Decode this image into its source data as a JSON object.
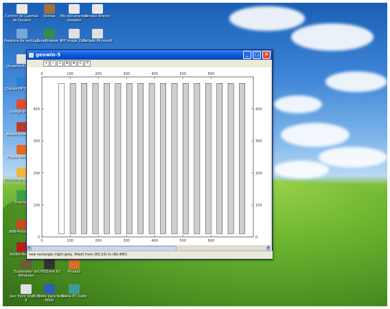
{
  "desktop": {
    "icons": [
      {
        "label": "Control de Cuentas de Usuario",
        "color": "#e9e9e9"
      },
      {
        "label": "Ventas",
        "color": "#a2723d"
      },
      {
        "label": "Mis documentos visuales",
        "color": "#e9e9e9"
      },
      {
        "label": "Acceso directo",
        "color": "#e9e9e9"
      },
      {
        "label": "Papelera de reciclaje",
        "color": "#78a7d8"
      },
      {
        "label": "ZoneBrowser 6",
        "color": "#3a8a45"
      },
      {
        "label": "HP Image Zone",
        "color": "#e0e0e0"
      },
      {
        "label": "Teclado Microsoft",
        "color": "#e0e0e0"
      },
      {
        "label": "Usuarios Externos",
        "color": "#e0e0e0"
      },
      {
        "label": "Cliente HP Officejet",
        "color": "#2f7fd1"
      },
      {
        "label": "Google Picasa",
        "color": "#e34b2b"
      },
      {
        "label": "Adobe Reader 7.0",
        "color": "#c0392b"
      },
      {
        "label": "Picasa Webalbum",
        "color": "#e56b1c"
      },
      {
        "label": "Photoshop Office OS",
        "color": "#f0b73c"
      },
      {
        "label": "Scigraph",
        "color": "#3aa04a"
      },
      {
        "label": "WIN-Prolog 4.6",
        "color": "#c64a1c"
      },
      {
        "label": "Adobe Reader",
        "color": "#b81f1f"
      },
      {
        "label": "Explorador do Windows",
        "color": "#6b5d36"
      },
      {
        "label": "DVDZone X2",
        "color": "#333333"
      },
      {
        "label": "Picasa2",
        "color": "#d86f2b"
      },
      {
        "label": "Jasc Paint Shop Pro 9",
        "color": "#e0e0e0"
      },
      {
        "label": "PC Suite para Nokia 6600",
        "color": "#2a5fb4"
      },
      {
        "label": "Nokia PC Suite",
        "color": "#3f9a9a"
      }
    ]
  },
  "window": {
    "title": "geowin-5",
    "buttons": {
      "minimize": "_",
      "maximize": "□",
      "close": "×"
    },
    "toolbar": [
      "+",
      "−",
      "↕",
      "⊞",
      "⊕",
      "C",
      "P"
    ],
    "status": "new rectangle (light-grey, filled) from (60,10) to (80,480)"
  },
  "chart_data": {
    "type": "bar",
    "title": "",
    "xlabel": "",
    "ylabel": "",
    "xlim": [
      0,
      750
    ],
    "ylim": [
      0,
      500
    ],
    "xticks": [
      0,
      100,
      200,
      300,
      400,
      500,
      600
    ],
    "yticks": [
      0,
      100,
      200,
      300,
      400
    ],
    "fill_color": "#cfcfcf",
    "rects": [
      {
        "x0": 60,
        "x1": 80,
        "y0": 10,
        "y1": 480
      },
      {
        "x0": 100,
        "x1": 120,
        "y0": 10,
        "y1": 480
      },
      {
        "x0": 140,
        "x1": 160,
        "y0": 10,
        "y1": 480
      },
      {
        "x0": 180,
        "x1": 200,
        "y0": 10,
        "y1": 480
      },
      {
        "x0": 220,
        "x1": 240,
        "y0": 10,
        "y1": 480
      },
      {
        "x0": 260,
        "x1": 280,
        "y0": 10,
        "y1": 480
      },
      {
        "x0": 300,
        "x1": 320,
        "y0": 10,
        "y1": 480
      },
      {
        "x0": 340,
        "x1": 360,
        "y0": 10,
        "y1": 480
      },
      {
        "x0": 380,
        "x1": 400,
        "y0": 10,
        "y1": 480
      },
      {
        "x0": 420,
        "x1": 440,
        "y0": 10,
        "y1": 480
      },
      {
        "x0": 460,
        "x1": 480,
        "y0": 10,
        "y1": 480
      },
      {
        "x0": 500,
        "x1": 520,
        "y0": 10,
        "y1": 480
      },
      {
        "x0": 540,
        "x1": 560,
        "y0": 10,
        "y1": 480
      },
      {
        "x0": 580,
        "x1": 600,
        "y0": 10,
        "y1": 480
      },
      {
        "x0": 620,
        "x1": 640,
        "y0": 10,
        "y1": 480
      },
      {
        "x0": 660,
        "x1": 680,
        "y0": 10,
        "y1": 480
      },
      {
        "x0": 700,
        "x1": 720,
        "y0": 10,
        "y1": 480
      }
    ]
  }
}
